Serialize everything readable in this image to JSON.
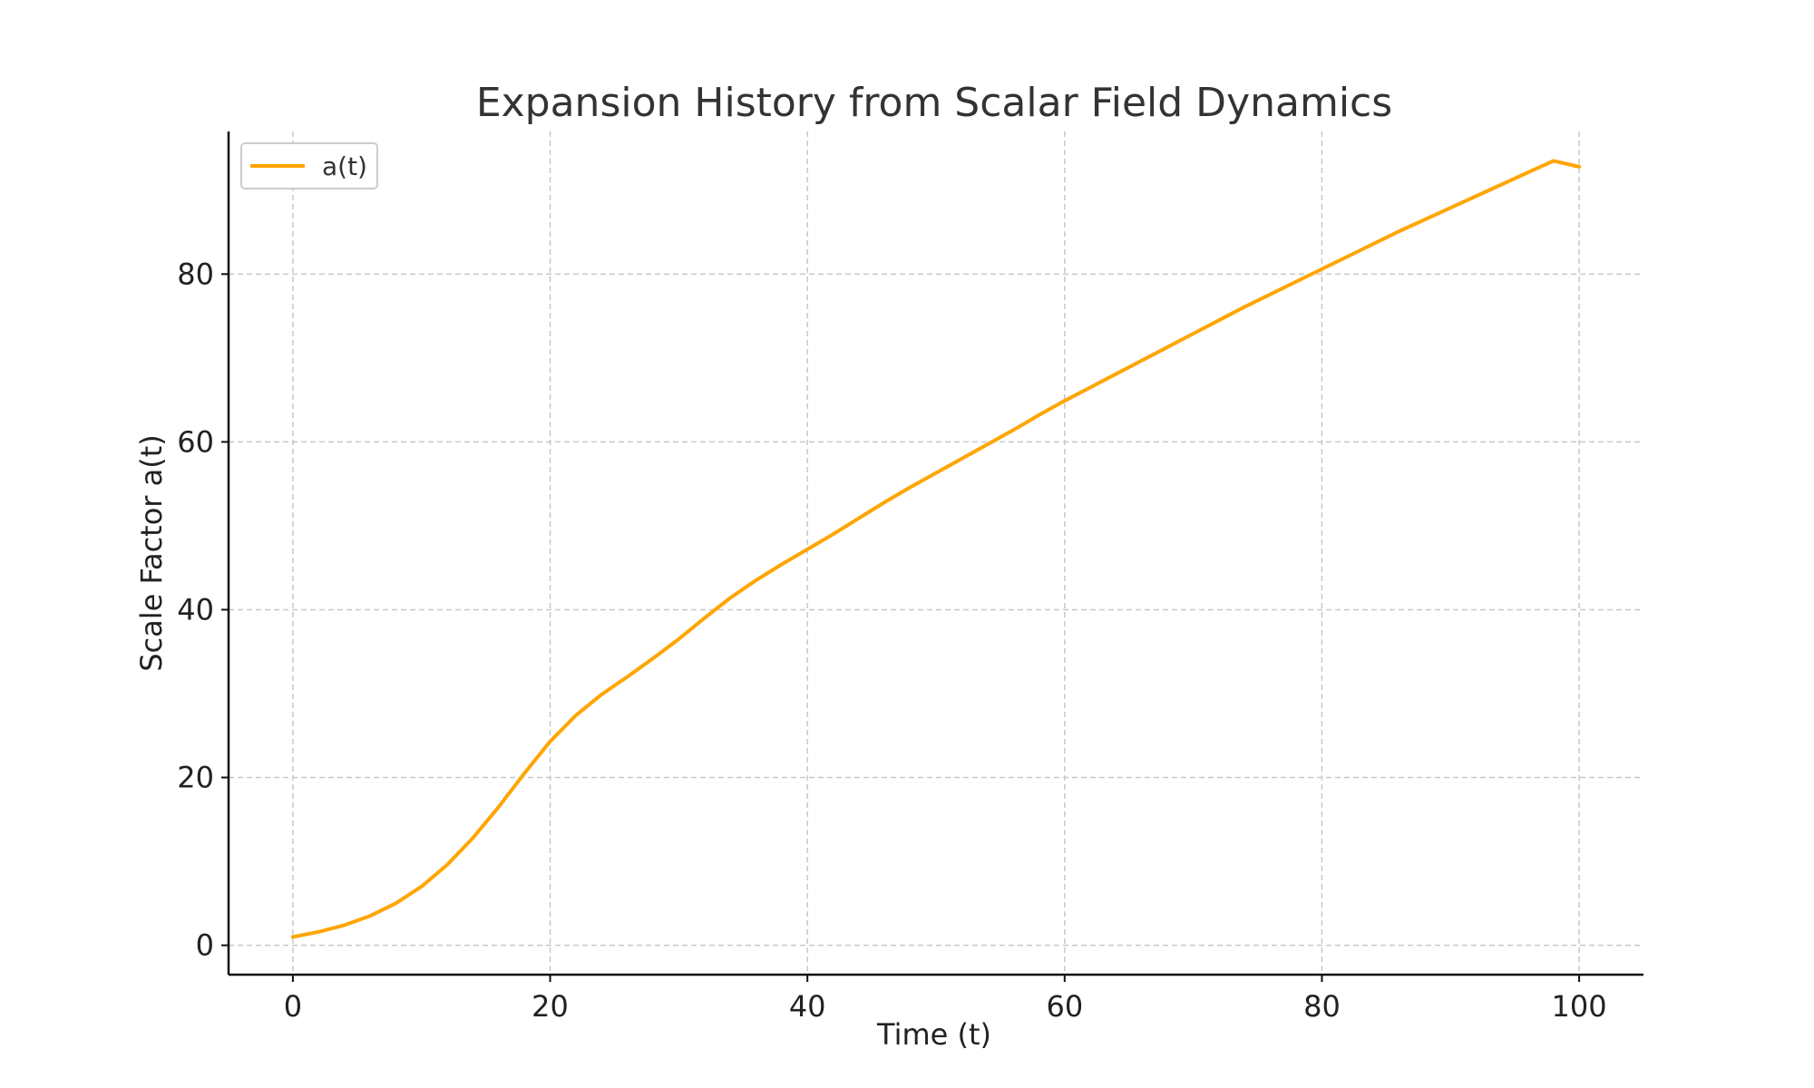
{
  "chart_data": {
    "type": "line",
    "title": "Expansion History from Scalar Field Dynamics",
    "xlabel": "Time (t)",
    "ylabel": "Scale Factor a(t)",
    "xlim": [
      -5,
      105
    ],
    "ylim": [
      -3.5,
      97
    ],
    "xticks": [
      0,
      20,
      40,
      60,
      80,
      100
    ],
    "yticks": [
      0,
      20,
      40,
      60,
      80
    ],
    "grid": true,
    "legend_position": "top-left",
    "series": [
      {
        "name": "a(t)",
        "color": "#FFA500",
        "x": [
          0,
          2,
          4,
          6,
          8,
          10,
          12,
          14,
          16,
          18,
          20,
          22,
          24,
          26,
          28,
          30,
          32,
          34,
          36,
          38,
          40,
          42,
          44,
          46,
          48,
          50,
          52,
          54,
          56,
          58,
          60,
          62,
          64,
          66,
          68,
          70,
          72,
          74,
          76,
          78,
          80,
          82,
          84,
          86,
          88,
          90,
          92,
          94,
          96,
          98,
          100
        ],
        "y": [
          1.0,
          1.6,
          2.4,
          3.5,
          5.0,
          7.0,
          9.6,
          12.8,
          16.5,
          20.5,
          24.3,
          27.4,
          29.9,
          32.0,
          34.2,
          36.5,
          39.0,
          41.4,
          43.5,
          45.4,
          47.2,
          49.0,
          50.9,
          52.8,
          54.6,
          56.3,
          58.0,
          59.7,
          61.4,
          63.2,
          64.9,
          66.5,
          68.1,
          69.7,
          71.3,
          72.9,
          74.5,
          76.1,
          77.6,
          79.1,
          80.6,
          82.1,
          83.6,
          85.1,
          86.5,
          87.9,
          89.3,
          90.7,
          92.1,
          93.5,
          92.8
        ]
      }
    ]
  }
}
